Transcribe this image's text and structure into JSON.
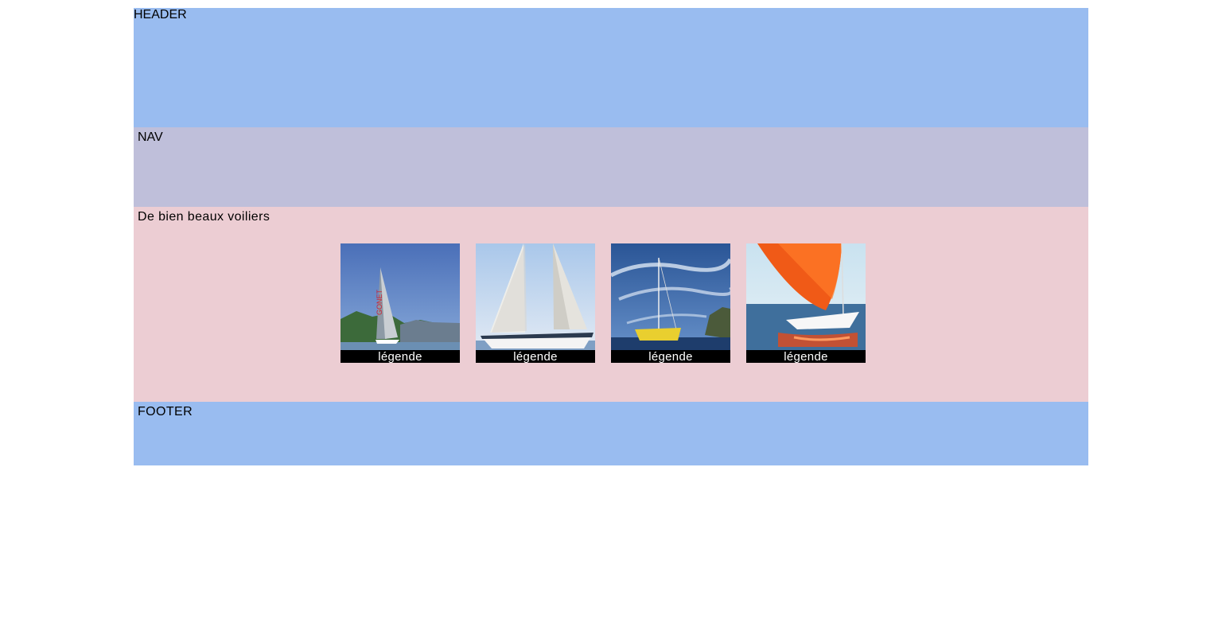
{
  "header": {
    "label": "HEADER"
  },
  "nav": {
    "label": "NAV"
  },
  "main": {
    "title": "De bien beaux voiliers",
    "gallery": [
      {
        "caption": "légende"
      },
      {
        "caption": "légende"
      },
      {
        "caption": "légende"
      },
      {
        "caption": "légende"
      }
    ]
  },
  "footer": {
    "label": "FOOTER"
  },
  "colors": {
    "header_bg": "#99bcf0",
    "nav_bg": "#bfbfda",
    "main_bg": "#eccdd3",
    "footer_bg": "#99bcf0"
  }
}
